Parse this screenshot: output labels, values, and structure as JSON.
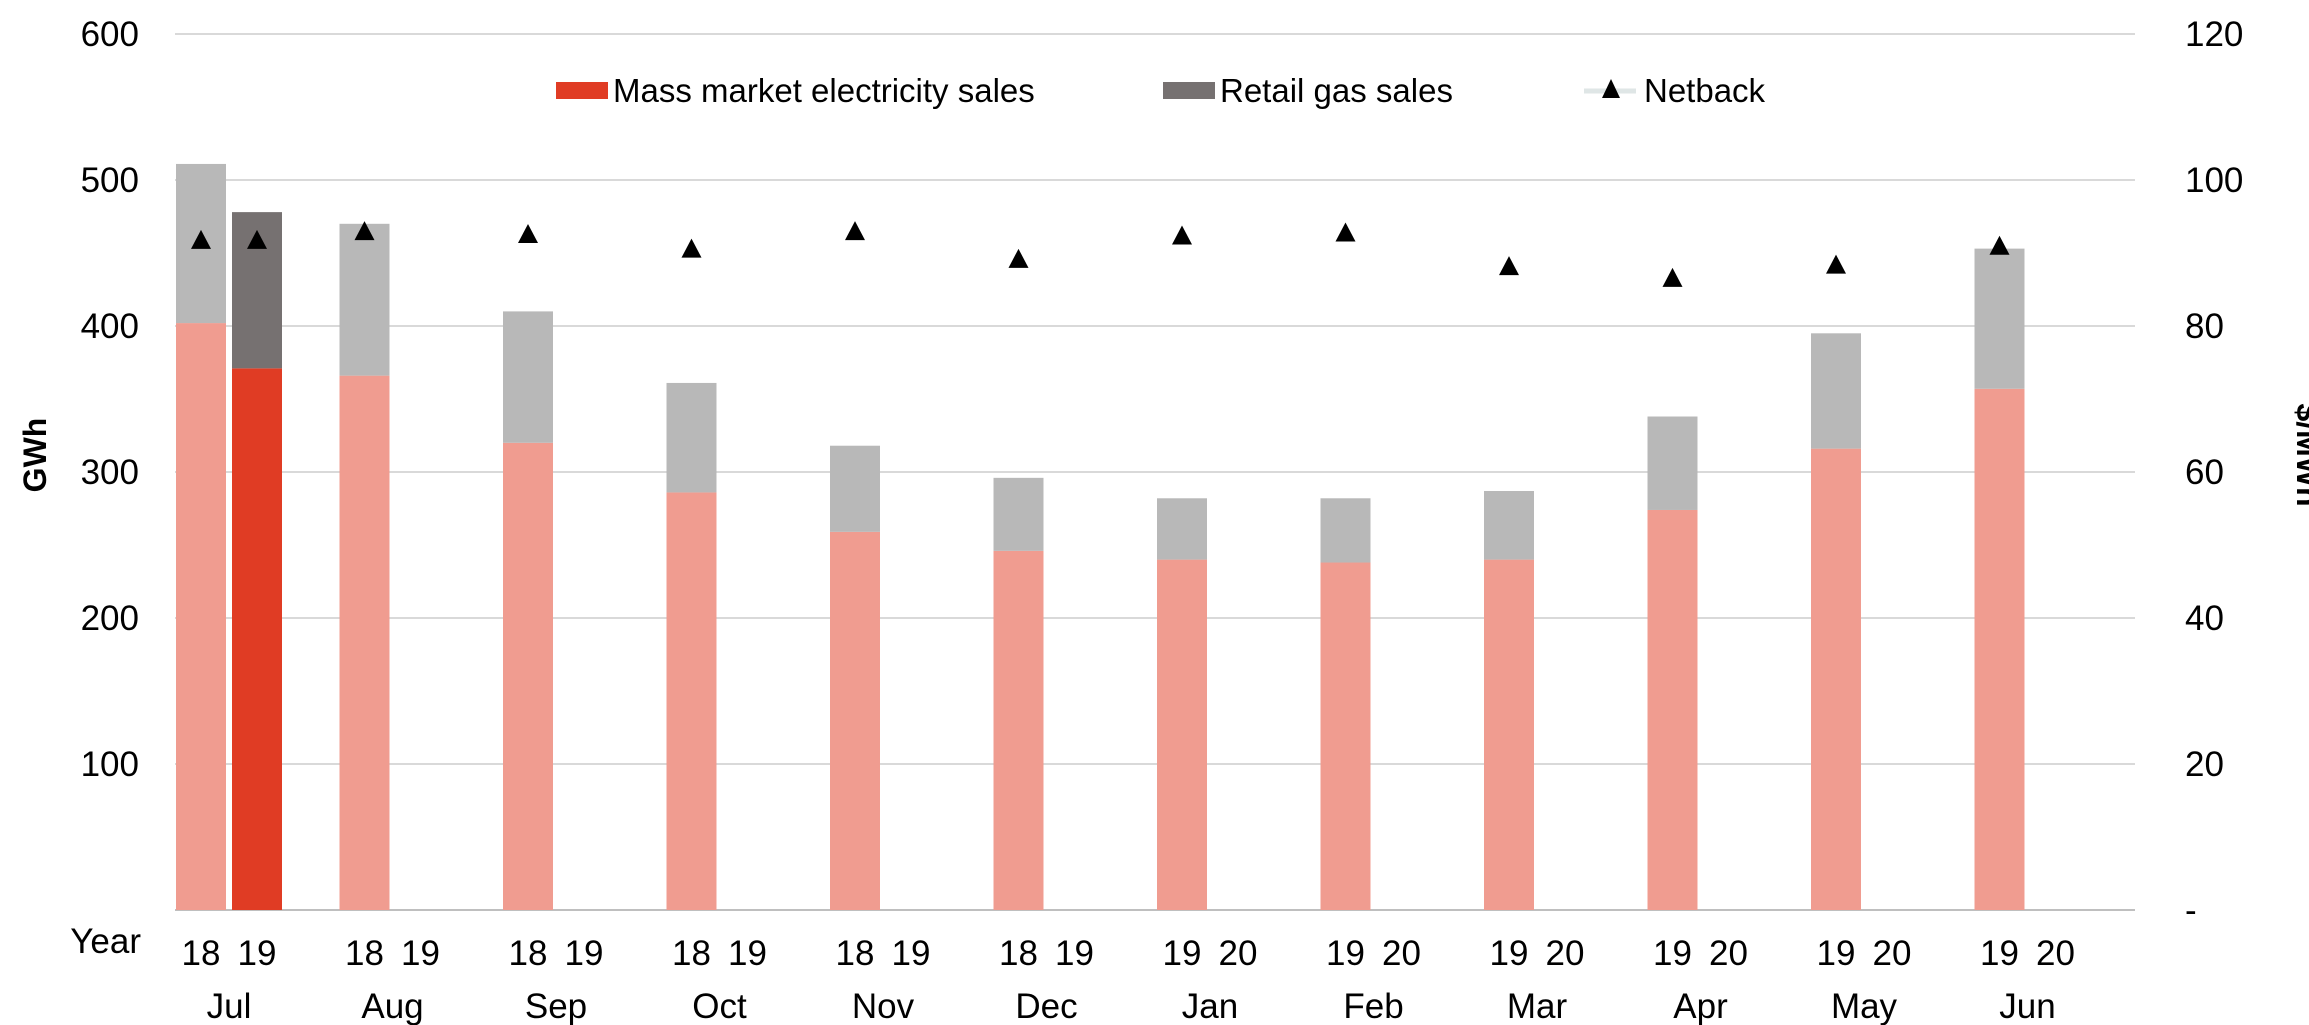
{
  "chart_data": {
    "type": "bar",
    "title": "",
    "xlabel": "Year",
    "ylabel": "GWh",
    "y2label": "$/MWh",
    "ylim": [
      0,
      600
    ],
    "y2lim": [
      0,
      120
    ],
    "y_ticks": [
      "",
      "100",
      "200",
      "300",
      "400",
      "500",
      "600"
    ],
    "y2_ticks": [
      "-",
      "20",
      "40",
      "60",
      "80",
      "100",
      "120"
    ],
    "grid": true,
    "legend_position": "top",
    "legend": [
      {
        "label": "Mass market electricity sales",
        "kind": "bar",
        "color": "#e03c24"
      },
      {
        "label": "Retail gas sales",
        "kind": "bar",
        "color": "#767171"
      },
      {
        "label": "Netback",
        "kind": "marker",
        "color": "#000000"
      }
    ],
    "colors": {
      "electricity_prior": "#f09c90",
      "gas_prior": "#b8b8b8",
      "electricity_current": "#e03c24",
      "gas_current": "#767171",
      "netback": "#000000",
      "grid": "#d9d9d9"
    },
    "categories": [
      {
        "month": "Jul",
        "years": [
          "18",
          "19"
        ],
        "electricity": [
          402,
          371
        ],
        "gas": [
          109,
          107
        ],
        "netback": 91.8,
        "netback2": 91.8
      },
      {
        "month": "Aug",
        "years": [
          "18",
          "19"
        ],
        "electricity": [
          366,
          null
        ],
        "gas": [
          104,
          null
        ],
        "netback": 93.0
      },
      {
        "month": "Sep",
        "years": [
          "18",
          "19"
        ],
        "electricity": [
          320,
          null
        ],
        "gas": [
          90,
          null
        ],
        "netback": 92.6
      },
      {
        "month": "Oct",
        "years": [
          "18",
          "19"
        ],
        "electricity": [
          286,
          null
        ],
        "gas": [
          75,
          null
        ],
        "netback": 90.6
      },
      {
        "month": "Nov",
        "years": [
          "18",
          "19"
        ],
        "electricity": [
          259,
          null
        ],
        "gas": [
          59,
          null
        ],
        "netback": 93.0
      },
      {
        "month": "Dec",
        "years": [
          "18",
          "19"
        ],
        "electricity": [
          246,
          null
        ],
        "gas": [
          50,
          null
        ],
        "netback": 89.2
      },
      {
        "month": "Jan",
        "years": [
          "19",
          "20"
        ],
        "electricity": [
          240,
          null
        ],
        "gas": [
          42,
          null
        ],
        "netback": 92.4
      },
      {
        "month": "Feb",
        "years": [
          "19",
          "20"
        ],
        "electricity": [
          238,
          null
        ],
        "gas": [
          44,
          null
        ],
        "netback": 92.8
      },
      {
        "month": "Mar",
        "years": [
          "19",
          "20"
        ],
        "electricity": [
          240,
          null
        ],
        "gas": [
          47,
          null
        ],
        "netback": 88.2
      },
      {
        "month": "Apr",
        "years": [
          "19",
          "20"
        ],
        "electricity": [
          274,
          null
        ],
        "gas": [
          64,
          null
        ],
        "netback": 86.6
      },
      {
        "month": "May",
        "years": [
          "19",
          "20"
        ],
        "electricity": [
          316,
          null
        ],
        "gas": [
          79,
          null
        ],
        "netback": 88.4
      },
      {
        "month": "Jun",
        "years": [
          "19",
          "20"
        ],
        "electricity": [
          357,
          null
        ],
        "gas": [
          96,
          null
        ],
        "netback": 91.0
      }
    ]
  }
}
